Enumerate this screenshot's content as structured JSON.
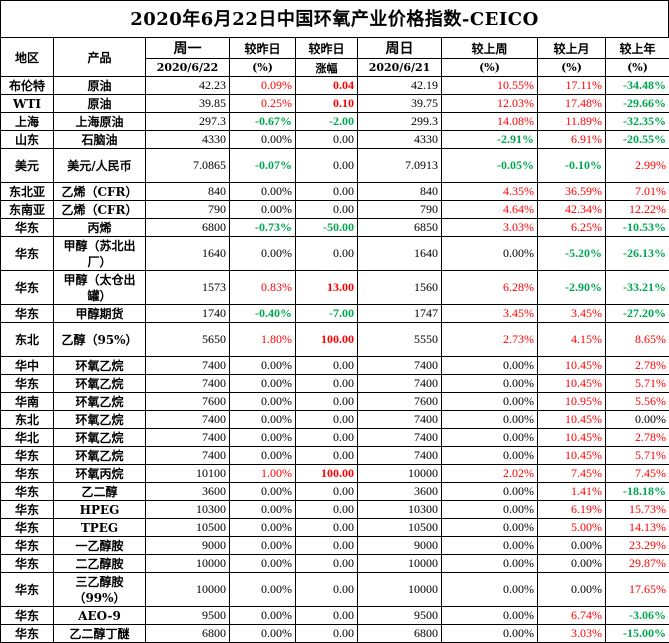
{
  "title": "2020年6月22日中国环氧产业价格指数-CEICO",
  "header": {
    "region": "地区",
    "product": "产品",
    "mon": "周一",
    "mon_date": "2020/6/22",
    "vs_prev_day": "较昨日",
    "vs_prev_day_unit": "(%)",
    "vs_prev_day2": "较昨日",
    "vs_prev_day2_unit": "涨幅",
    "sun": "周日",
    "sun_date": "2020/6/21",
    "vs_last_week": "较上周",
    "vs_last_week_unit": "(%)",
    "vs_last_month": "较上月",
    "vs_last_month_unit": "(%)",
    "vs_last_year": "较上年",
    "vs_last_year_unit": "(%)"
  },
  "rows": [
    {
      "region": "布伦特",
      "product": "原油",
      "mon": "42.23",
      "d1": "0.09%",
      "d1c": "red",
      "d2": "0.04",
      "d2c": "bred",
      "sun": "42.19",
      "w": "10.55%",
      "wc": "red",
      "m": "17.11%",
      "mc": "red",
      "y": "-34.48%",
      "yc": "green",
      "h": 18
    },
    {
      "region": "WTI",
      "product": "原油",
      "mon": "39.85",
      "d1": "0.25%",
      "d1c": "red",
      "d2": "0.10",
      "d2c": "bred",
      "sun": "39.75",
      "w": "12.03%",
      "wc": "red",
      "m": "17.48%",
      "mc": "red",
      "y": "-29.66%",
      "yc": "green",
      "h": 18
    },
    {
      "region": "上海",
      "product": "上海原油",
      "mon": "297.3",
      "d1": "-0.67%",
      "d1c": "green",
      "d2": "-2.00",
      "d2c": "green",
      "sun": "299.3",
      "w": "14.08%",
      "wc": "red",
      "m": "11.89%",
      "mc": "red",
      "y": "-32.35%",
      "yc": "green",
      "h": 18
    },
    {
      "region": "山东",
      "product": "石脑油",
      "mon": "4330",
      "d1": "0.00%",
      "d1c": "black",
      "d2": "0.00",
      "d2c": "black",
      "sun": "4330",
      "w": "-2.91%",
      "wc": "green",
      "m": "6.91%",
      "mc": "red",
      "y": "-20.55%",
      "yc": "green",
      "h": 18
    },
    {
      "region": "美元",
      "product": "美元/人民币",
      "mon": "7.0865",
      "d1": "-0.07%",
      "d1c": "green",
      "d2": "0.00",
      "d2c": "black",
      "sun": "7.0913",
      "w": "-0.05%",
      "wc": "green",
      "m": "-0.10%",
      "mc": "green",
      "y": "2.99%",
      "yc": "red",
      "h": 34
    },
    {
      "region": "东北亚",
      "product": "乙烯（CFR）",
      "mon": "840",
      "d1": "0.00%",
      "d1c": "black",
      "d2": "0.00",
      "d2c": "black",
      "sun": "840",
      "w": "4.35%",
      "wc": "red",
      "m": "36.59%",
      "mc": "red",
      "y": "7.01%",
      "yc": "red",
      "h": 18
    },
    {
      "region": "东南亚",
      "product": "乙烯（CFR）",
      "mon": "790",
      "d1": "0.00%",
      "d1c": "black",
      "d2": "0.00",
      "d2c": "black",
      "sun": "790",
      "w": "4.64%",
      "wc": "red",
      "m": "42.34%",
      "mc": "red",
      "y": "12.22%",
      "yc": "red",
      "h": 18
    },
    {
      "region": "华东",
      "product": "丙烯",
      "mon": "6800",
      "d1": "-0.73%",
      "d1c": "green",
      "d2": "-50.00",
      "d2c": "green",
      "sun": "6850",
      "w": "3.03%",
      "wc": "red",
      "m": "6.25%",
      "mc": "red",
      "y": "-10.53%",
      "yc": "green",
      "h": 18
    },
    {
      "region": "华东",
      "product": "甲醇（苏北出厂）",
      "mon": "1640",
      "d1": "0.00%",
      "d1c": "black",
      "d2": "0.00",
      "d2c": "black",
      "sun": "1640",
      "w": "0.00%",
      "wc": "black",
      "m": "-5.20%",
      "mc": "green",
      "y": "-26.13%",
      "yc": "green",
      "h": 34
    },
    {
      "region": "华东",
      "product": "甲醇（太仓出罐）",
      "mon": "1573",
      "d1": "0.83%",
      "d1c": "red",
      "d2": "13.00",
      "d2c": "bred",
      "sun": "1560",
      "w": "6.28%",
      "wc": "red",
      "m": "-2.90%",
      "mc": "green",
      "y": "-33.21%",
      "yc": "green",
      "h": 34
    },
    {
      "region": "华东",
      "product": "甲醇期货",
      "mon": "1740",
      "d1": "-0.40%",
      "d1c": "green",
      "d2": "-7.00",
      "d2c": "green",
      "sun": "1747",
      "w": "3.45%",
      "wc": "red",
      "m": "3.45%",
      "mc": "red",
      "y": "-27.20%",
      "yc": "green",
      "h": 18
    },
    {
      "region": "东北",
      "product": "乙醇（95%）",
      "mon": "5650",
      "d1": "1.80%",
      "d1c": "red",
      "d2": "100.00",
      "d2c": "bred",
      "sun": "5550",
      "w": "2.73%",
      "wc": "red",
      "m": "4.15%",
      "mc": "red",
      "y": "8.65%",
      "yc": "red",
      "h": 34
    },
    {
      "region": "华中",
      "product": "环氧乙烷",
      "mon": "7400",
      "d1": "0.00%",
      "d1c": "black",
      "d2": "0.00",
      "d2c": "black",
      "sun": "7400",
      "w": "0.00%",
      "wc": "black",
      "m": "10.45%",
      "mc": "red",
      "y": "2.78%",
      "yc": "red",
      "h": 18
    },
    {
      "region": "华东",
      "product": "环氧乙烷",
      "mon": "7400",
      "d1": "0.00%",
      "d1c": "black",
      "d2": "0.00",
      "d2c": "black",
      "sun": "7400",
      "w": "0.00%",
      "wc": "black",
      "m": "10.45%",
      "mc": "red",
      "y": "5.71%",
      "yc": "red",
      "h": 18
    },
    {
      "region": "华南",
      "product": "环氧乙烷",
      "mon": "7600",
      "d1": "0.00%",
      "d1c": "black",
      "d2": "0.00",
      "d2c": "black",
      "sun": "7600",
      "w": "0.00%",
      "wc": "black",
      "m": "10.95%",
      "mc": "red",
      "y": "5.56%",
      "yc": "red",
      "h": 18
    },
    {
      "region": "东北",
      "product": "环氧乙烷",
      "mon": "7400",
      "d1": "0.00%",
      "d1c": "black",
      "d2": "0.00",
      "d2c": "black",
      "sun": "7400",
      "w": "0.00%",
      "wc": "black",
      "m": "10.45%",
      "mc": "red",
      "y": "0.00%",
      "yc": "black",
      "h": 18
    },
    {
      "region": "华北",
      "product": "环氧乙烷",
      "mon": "7400",
      "d1": "0.00%",
      "d1c": "black",
      "d2": "0.00",
      "d2c": "black",
      "sun": "7400",
      "w": "0.00%",
      "wc": "black",
      "m": "10.45%",
      "mc": "red",
      "y": "2.78%",
      "yc": "red",
      "h": 18
    },
    {
      "region": "华东",
      "product": "环氧乙烷",
      "mon": "7400",
      "d1": "0.00%",
      "d1c": "black",
      "d2": "0.00",
      "d2c": "black",
      "sun": "7400",
      "w": "0.00%",
      "wc": "black",
      "m": "10.45%",
      "mc": "red",
      "y": "5.71%",
      "yc": "red",
      "h": 18
    },
    {
      "region": "华东",
      "product": "环氧丙烷",
      "mon": "10100",
      "d1": "1.00%",
      "d1c": "red",
      "d2": "100.00",
      "d2c": "bred",
      "sun": "10000",
      "w": "2.02%",
      "wc": "red",
      "m": "7.45%",
      "mc": "red",
      "y": "7.45%",
      "yc": "red",
      "h": 18
    },
    {
      "region": "华东",
      "product": "乙二醇",
      "mon": "3600",
      "d1": "0.00%",
      "d1c": "black",
      "d2": "0.00",
      "d2c": "black",
      "sun": "3600",
      "w": "0.00%",
      "wc": "black",
      "m": "1.41%",
      "mc": "red",
      "y": "-18.18%",
      "yc": "green",
      "h": 18
    },
    {
      "region": "华东",
      "product": "HPEG",
      "mon": "10300",
      "d1": "0.00%",
      "d1c": "black",
      "d2": "0.00",
      "d2c": "black",
      "sun": "10300",
      "w": "0.00%",
      "wc": "black",
      "m": "6.19%",
      "mc": "red",
      "y": "15.73%",
      "yc": "red",
      "h": 18
    },
    {
      "region": "华东",
      "product": "TPEG",
      "mon": "10500",
      "d1": "0.00%",
      "d1c": "black",
      "d2": "0.00",
      "d2c": "black",
      "sun": "10500",
      "w": "0.00%",
      "wc": "black",
      "m": "5.00%",
      "mc": "red",
      "y": "14.13%",
      "yc": "red",
      "h": 18
    },
    {
      "region": "华东",
      "product": "一乙醇胺",
      "mon": "9000",
      "d1": "0.00%",
      "d1c": "black",
      "d2": "0.00",
      "d2c": "black",
      "sun": "9000",
      "w": "0.00%",
      "wc": "black",
      "m": "0.00%",
      "mc": "black",
      "y": "23.29%",
      "yc": "red",
      "h": 18
    },
    {
      "region": "华东",
      "product": "二乙醇胺",
      "mon": "10000",
      "d1": "0.00%",
      "d1c": "black",
      "d2": "0.00",
      "d2c": "black",
      "sun": "10000",
      "w": "0.00%",
      "wc": "black",
      "m": "0.00%",
      "mc": "black",
      "y": "29.87%",
      "yc": "red",
      "h": 18
    },
    {
      "region": "华东",
      "product": "三乙醇胺（99%）",
      "mon": "10000",
      "d1": "0.00%",
      "d1c": "black",
      "d2": "0.00",
      "d2c": "black",
      "sun": "10000",
      "w": "0.00%",
      "wc": "black",
      "m": "0.00%",
      "mc": "black",
      "y": "17.65%",
      "yc": "red",
      "h": 34
    },
    {
      "region": "华东",
      "product": "AEO-9",
      "mon": "9500",
      "d1": "0.00%",
      "d1c": "black",
      "d2": "0.00",
      "d2c": "black",
      "sun": "9500",
      "w": "0.00%",
      "wc": "black",
      "m": "6.74%",
      "mc": "red",
      "y": "-3.06%",
      "yc": "green",
      "h": 18
    },
    {
      "region": "华东",
      "product": "乙二醇丁醚",
      "mon": "6800",
      "d1": "0.00%",
      "d1c": "black",
      "d2": "0.00",
      "d2c": "black",
      "sun": "6800",
      "w": "0.00%",
      "wc": "black",
      "m": "3.03%",
      "mc": "red",
      "y": "-15.00%",
      "yc": "green",
      "h": 18
    }
  ]
}
